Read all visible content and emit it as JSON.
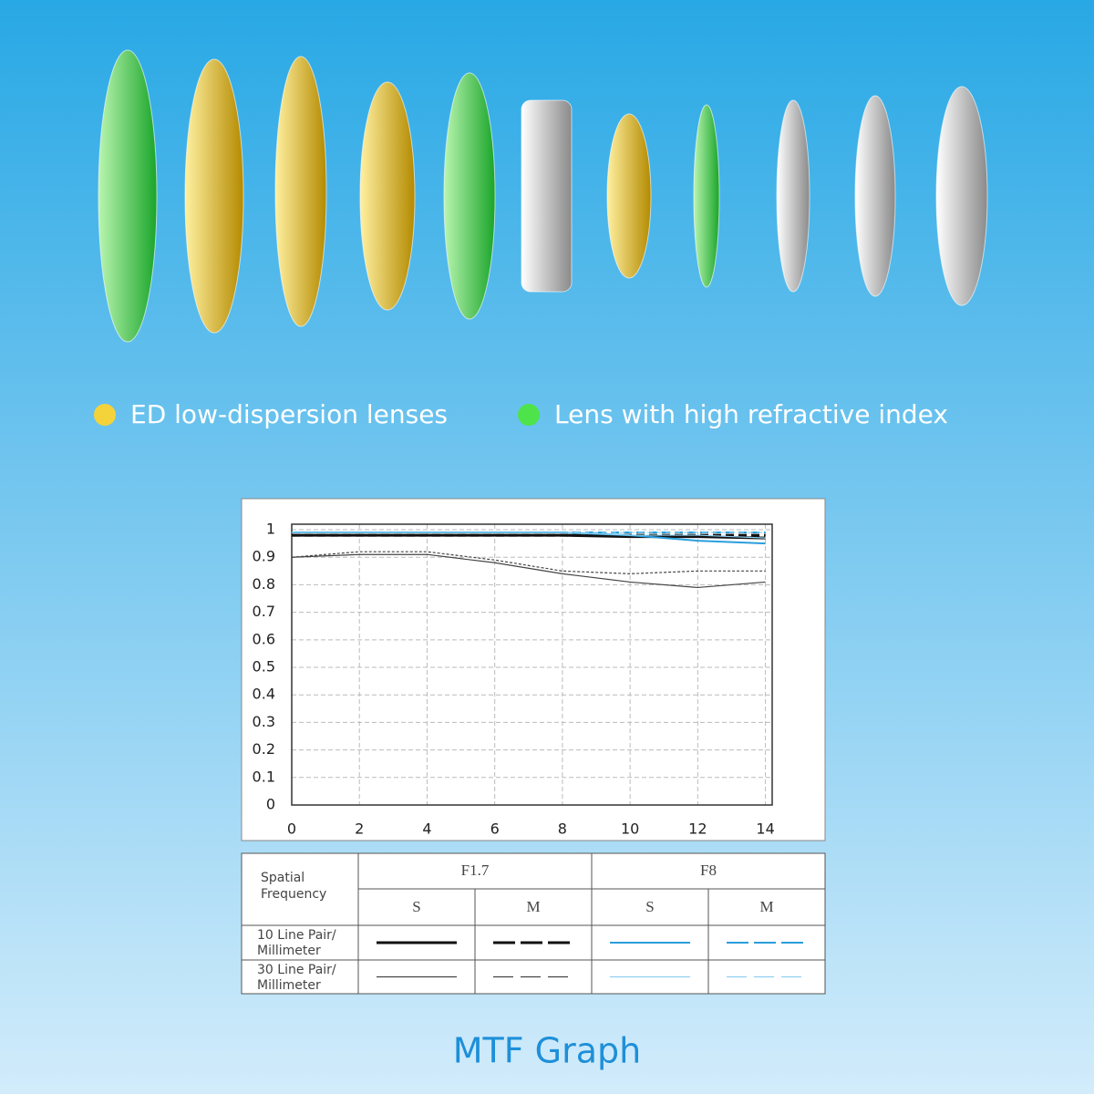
{
  "lens_legend": [
    {
      "label": "ED low-dispersion lenses",
      "color": "#f4d33a"
    },
    {
      "label": "Lens with high refractive index",
      "color": "#4ee34a"
    }
  ],
  "chart_data": {
    "type": "line",
    "title": "MTF Graph",
    "x": [
      0,
      2,
      4,
      6,
      8,
      10,
      12,
      14
    ],
    "xlim": [
      0,
      14.2
    ],
    "ylim": [
      0,
      1.02
    ],
    "xticks": [
      0,
      2,
      4,
      6,
      8,
      10,
      12,
      14
    ],
    "yticks": [
      0,
      0.1,
      0.2,
      0.3,
      0.4,
      0.5,
      0.6,
      0.7,
      0.8,
      0.9,
      1
    ],
    "grid": true,
    "series": [
      {
        "color": "#111111",
        "width": 3,
        "dash": "",
        "values": [
          0.98,
          0.98,
          0.98,
          0.98,
          0.98,
          0.975,
          0.975,
          0.97
        ]
      },
      {
        "color": "#111111",
        "width": 3,
        "dash": "9 5",
        "values": [
          0.98,
          0.98,
          0.98,
          0.98,
          0.98,
          0.98,
          0.98,
          0.98
        ]
      },
      {
        "color": "#2a9fdc",
        "width": 2,
        "dash": "",
        "values": [
          0.99,
          0.99,
          0.99,
          0.99,
          0.99,
          0.98,
          0.96,
          0.95
        ]
      },
      {
        "color": "#2a9fdc",
        "width": 2,
        "dash": "9 5",
        "values": [
          0.99,
          0.99,
          0.99,
          0.99,
          0.99,
          0.99,
          0.99,
          0.99
        ]
      },
      {
        "color": "#444444",
        "width": 1.2,
        "dash": "",
        "values": [
          0.9,
          0.91,
          0.91,
          0.88,
          0.84,
          0.81,
          0.79,
          0.81
        ]
      },
      {
        "color": "#444444",
        "width": 1.2,
        "dash": "3 2",
        "values": [
          0.9,
          0.92,
          0.92,
          0.89,
          0.85,
          0.84,
          0.85,
          0.85
        ]
      },
      {
        "color": "#8fd0f0",
        "width": 1.2,
        "dash": "",
        "values": [
          0.99,
          0.99,
          0.99,
          0.99,
          0.99,
          0.98,
          0.98,
          0.97
        ]
      },
      {
        "color": "#8fd0f0",
        "width": 1.2,
        "dash": "6 4",
        "values": [
          0.99,
          0.99,
          0.99,
          0.99,
          0.99,
          0.99,
          0.99,
          0.99
        ]
      }
    ]
  },
  "legend_table": {
    "header": [
      "Spatial",
      "Frequency"
    ],
    "apertures": [
      "F1.7",
      "F8"
    ],
    "modes": [
      "S",
      "M",
      "S",
      "M"
    ],
    "rows": [
      [
        "10 Line Pair/",
        "Millimeter"
      ],
      [
        "30 Line Pair/",
        "Millimeter"
      ]
    ]
  }
}
